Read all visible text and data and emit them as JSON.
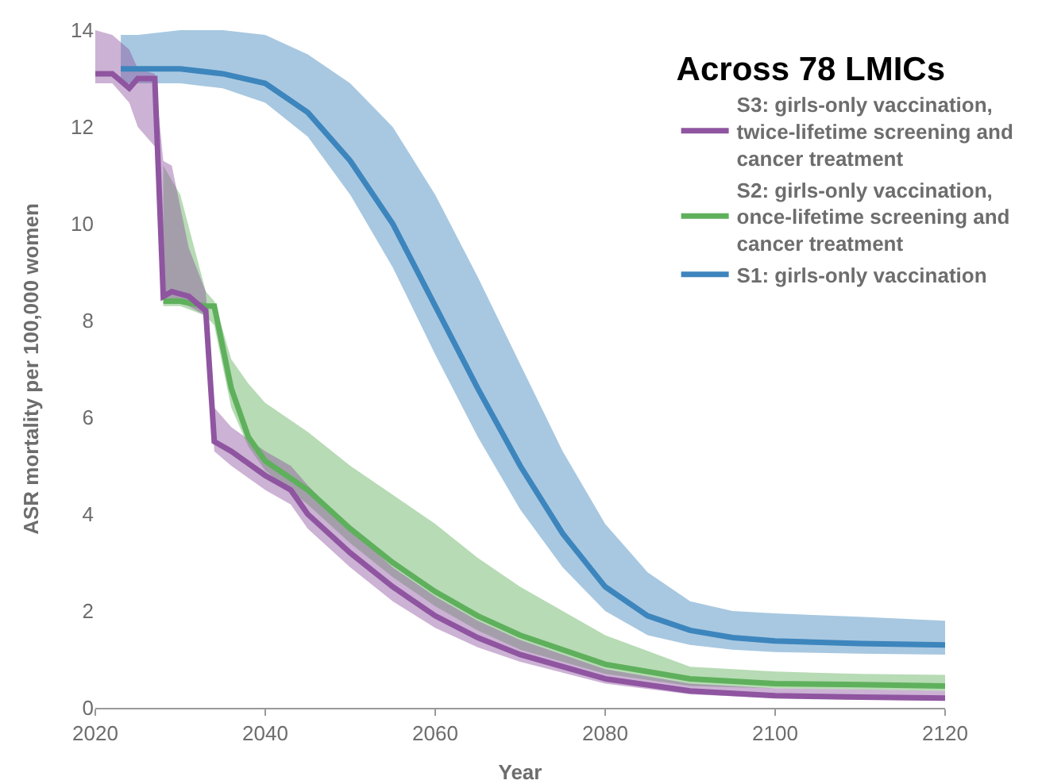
{
  "chart_data": {
    "type": "line",
    "legend_title": "Across 78 LMICs",
    "xlabel": "Year",
    "ylabel": "ASR mortality per 100,000 women",
    "xlim": [
      2020,
      2120
    ],
    "xticks": [
      2020,
      2040,
      2060,
      2080,
      2100,
      2120
    ],
    "ylim": [
      0,
      14
    ],
    "yticks": [
      0,
      2,
      4,
      6,
      8,
      10,
      12,
      14
    ],
    "grid": false,
    "legend": "top right",
    "marker": "none",
    "line_style": "solid",
    "series": [
      {
        "name": "S1: girls-only vaccination",
        "color": "#3d85bd",
        "x": [
          2023,
          2025,
          2030,
          2035,
          2040,
          2045,
          2050,
          2055,
          2060,
          2065,
          2070,
          2075,
          2080,
          2085,
          2090,
          2095,
          2100,
          2110,
          2120
        ],
        "values": [
          13.2,
          13.2,
          13.2,
          13.1,
          12.9,
          12.3,
          11.3,
          10.0,
          8.3,
          6.6,
          5.0,
          3.6,
          2.5,
          1.9,
          1.6,
          1.45,
          1.38,
          1.33,
          1.3
        ],
        "upper": [
          13.9,
          13.9,
          14.0,
          14.0,
          13.9,
          13.5,
          12.9,
          12.0,
          10.6,
          8.9,
          7.1,
          5.3,
          3.8,
          2.8,
          2.2,
          2.0,
          1.95,
          1.88,
          1.8
        ],
        "lower": [
          12.9,
          12.9,
          12.9,
          12.8,
          12.5,
          11.8,
          10.6,
          9.1,
          7.3,
          5.6,
          4.1,
          2.9,
          2.0,
          1.5,
          1.3,
          1.2,
          1.15,
          1.12,
          1.1
        ]
      },
      {
        "name": "S2: girls-only vaccination, once-lifetime screening and cancer treatment",
        "color": "#5fb05c",
        "x": [
          2028,
          2030,
          2033,
          2034,
          2036,
          2038,
          2040,
          2045,
          2050,
          2055,
          2060,
          2065,
          2070,
          2080,
          2090,
          2100,
          2110,
          2120
        ],
        "values": [
          8.4,
          8.4,
          8.3,
          8.3,
          6.6,
          5.6,
          5.1,
          4.5,
          3.7,
          3.0,
          2.4,
          1.9,
          1.5,
          0.9,
          0.6,
          0.5,
          0.48,
          0.45
        ],
        "upper": [
          11.2,
          10.6,
          8.6,
          8.4,
          7.2,
          6.7,
          6.3,
          5.7,
          5.0,
          4.4,
          3.8,
          3.1,
          2.5,
          1.5,
          0.85,
          0.75,
          0.7,
          0.68
        ],
        "lower": [
          8.3,
          8.3,
          8.1,
          7.9,
          6.2,
          5.4,
          4.9,
          4.2,
          3.4,
          2.7,
          2.1,
          1.6,
          1.2,
          0.7,
          0.45,
          0.4,
          0.38,
          0.35
        ]
      },
      {
        "name": "S3: girls-only vaccination, twice-lifetime screening and cancer treatment",
        "color": "#8f55a0",
        "x": [
          2020,
          2022,
          2024,
          2025,
          2027,
          2028,
          2029,
          2031,
          2033,
          2034,
          2036,
          2040,
          2043,
          2045,
          2050,
          2055,
          2060,
          2065,
          2070,
          2080,
          2090,
          2100,
          2110,
          2120
        ],
        "values": [
          13.1,
          13.1,
          12.8,
          13.0,
          13.0,
          8.5,
          8.6,
          8.5,
          8.2,
          5.5,
          5.3,
          4.8,
          4.5,
          4.0,
          3.2,
          2.5,
          1.9,
          1.45,
          1.1,
          0.6,
          0.35,
          0.25,
          0.22,
          0.2
        ],
        "upper": [
          14.0,
          13.9,
          13.6,
          13.2,
          13.1,
          11.3,
          11.2,
          9.5,
          8.6,
          6.2,
          5.8,
          5.3,
          5.0,
          4.6,
          3.7,
          2.9,
          2.3,
          1.8,
          1.4,
          0.8,
          0.5,
          0.4,
          0.38,
          0.35
        ],
        "lower": [
          12.9,
          12.9,
          12.5,
          12.0,
          11.6,
          8.4,
          8.4,
          8.3,
          8.1,
          5.3,
          5.0,
          4.5,
          4.2,
          3.7,
          2.9,
          2.2,
          1.65,
          1.25,
          0.95,
          0.5,
          0.28,
          0.2,
          0.17,
          0.15
        ]
      }
    ]
  }
}
